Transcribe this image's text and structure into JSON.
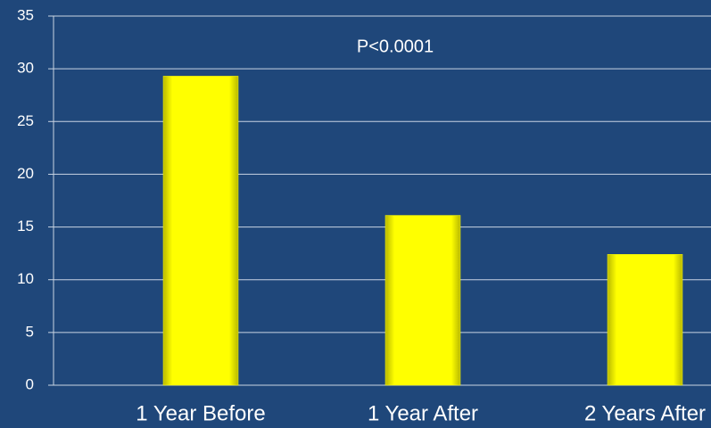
{
  "chart_data": {
    "type": "bar",
    "annotation": "P<0.0001",
    "categories": [
      "1 Year Before",
      "1 Year After",
      "2 Years After"
    ],
    "values": [
      29.3,
      16.1,
      12.4
    ],
    "color": "#ffff00",
    "ylim": [
      0,
      35
    ],
    "yticks": [
      0,
      5,
      10,
      15,
      20,
      25,
      30,
      35
    ],
    "grid": true
  }
}
